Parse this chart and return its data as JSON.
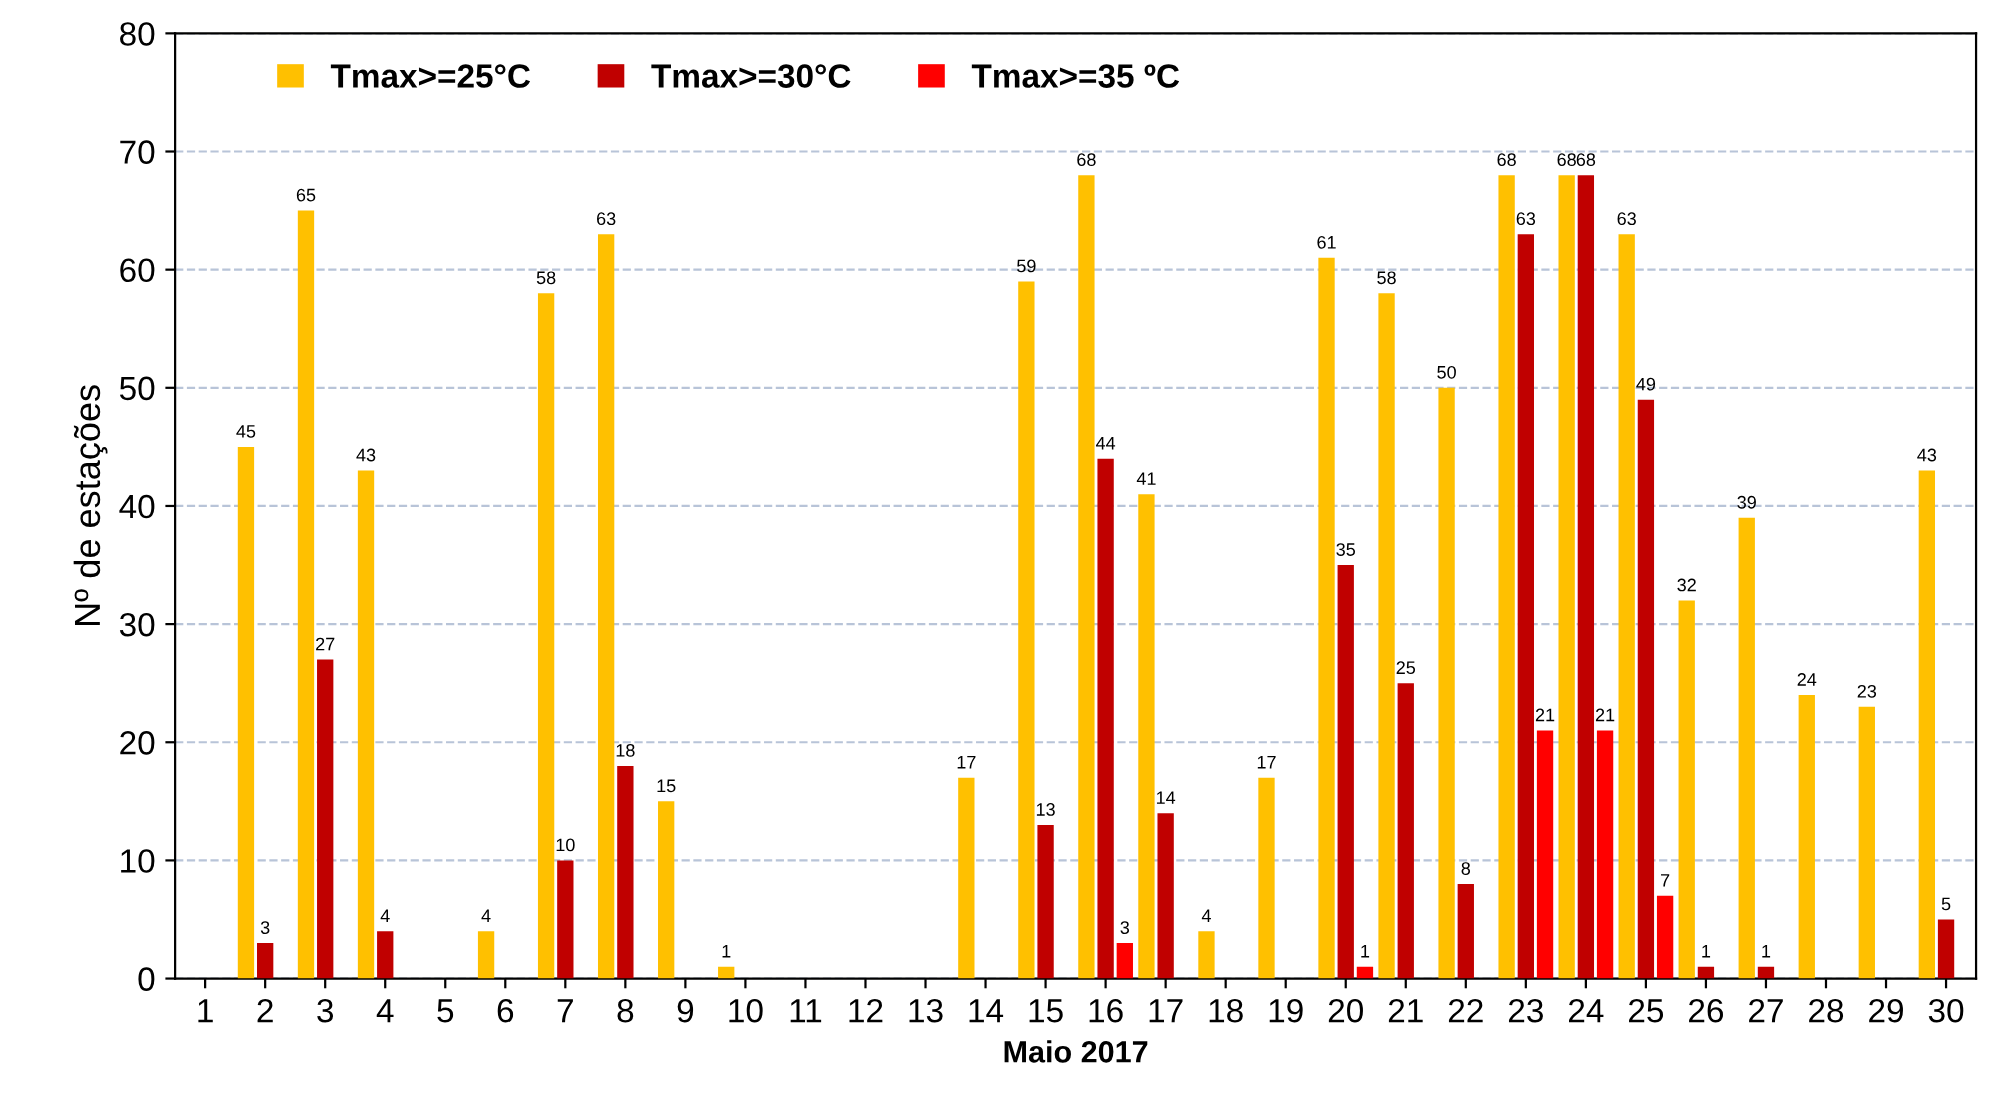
{
  "chart_data": {
    "type": "bar",
    "xlabel": "Maio 2017",
    "ylabel": "Nº de estações",
    "categories": [
      "1",
      "2",
      "3",
      "4",
      "5",
      "6",
      "7",
      "8",
      "9",
      "10",
      "11",
      "12",
      "13",
      "14",
      "15",
      "16",
      "17",
      "18",
      "19",
      "20",
      "21",
      "22",
      "23",
      "24",
      "25",
      "26",
      "27",
      "28",
      "29",
      "30"
    ],
    "series": [
      {
        "name": "Tmax>=25°C",
        "color": "#ffc000",
        "values": [
          0,
          45,
          65,
          43,
          0,
          4,
          58,
          63,
          15,
          1,
          0,
          0,
          0,
          17,
          59,
          68,
          41,
          4,
          17,
          61,
          58,
          50,
          68,
          68,
          63,
          32,
          39,
          24,
          23,
          43
        ],
        "value_labels": [
          null,
          "45",
          "65",
          "43",
          null,
          "4",
          "58",
          "63",
          "15",
          "1",
          null,
          null,
          null,
          "17",
          "59",
          "68",
          "41",
          "4",
          "17",
          "61",
          "58",
          "50",
          "68",
          "68",
          "63",
          "32",
          "39",
          "24",
          "23",
          "43"
        ]
      },
      {
        "name": "Tmax>=30°C",
        "color": "#c00000",
        "values": [
          0,
          3,
          27,
          4,
          0,
          0,
          10,
          18,
          0,
          0,
          0,
          0,
          0,
          0,
          13,
          44,
          14,
          0,
          0,
          35,
          25,
          8,
          63,
          68,
          49,
          1,
          1,
          0,
          0,
          5
        ],
        "value_labels": [
          null,
          "3",
          "27",
          "4",
          null,
          null,
          "10",
          "18",
          null,
          null,
          null,
          null,
          null,
          null,
          "13",
          "44",
          "14",
          null,
          null,
          "35",
          "25",
          "8",
          "63",
          "68",
          "49",
          "1",
          "1",
          null,
          null,
          "5"
        ]
      },
      {
        "name": "Tmax>=35 ºC",
        "color": "#ff0000",
        "values": [
          0,
          0,
          0,
          0,
          0,
          0,
          0,
          0,
          0,
          0,
          0,
          0,
          0,
          0,
          0,
          3,
          0,
          0,
          0,
          1,
          0,
          0,
          21,
          21,
          7,
          0,
          0,
          0,
          0,
          0
        ],
        "value_labels": [
          null,
          null,
          null,
          null,
          null,
          null,
          null,
          null,
          null,
          null,
          null,
          null,
          null,
          null,
          null,
          "3",
          null,
          null,
          null,
          "1",
          null,
          null,
          "21",
          "21",
          "7",
          null,
          null,
          null,
          null,
          null
        ]
      }
    ],
    "ylim": [
      0,
      80
    ],
    "yticks": [
      0,
      10,
      20,
      30,
      40,
      50,
      60,
      70,
      80
    ],
    "grid": "y",
    "legend": "top left"
  }
}
